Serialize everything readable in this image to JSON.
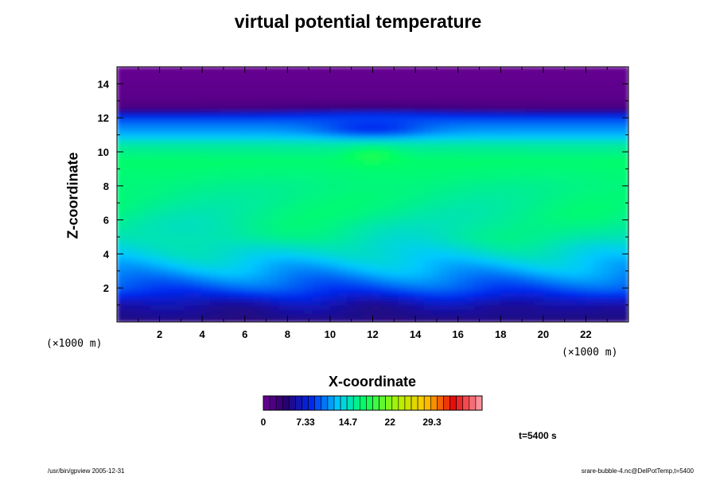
{
  "chart_data": {
    "type": "heatmap",
    "title": "virtual potential temperature",
    "xlabel": "X-coordinate",
    "ylabel": "Z-coordinate",
    "x_unit": "(×1000 m)",
    "y_unit": "(×1000 m)",
    "xlim": [
      0,
      24
    ],
    "ylim": [
      0,
      15
    ],
    "x_ticks": [
      2,
      4,
      6,
      8,
      10,
      12,
      14,
      16,
      18,
      20,
      22
    ],
    "y_ticks": [
      2,
      4,
      6,
      8,
      10,
      12,
      14
    ],
    "colorbar": {
      "min": 0,
      "max": 38,
      "tick_values": [
        0,
        7.33,
        14.7,
        22,
        29.3
      ],
      "tick_labels": [
        "0",
        "7.33",
        "14.7",
        "22",
        "29.3"
      ],
      "levels": 34
    },
    "vertical_profile": {
      "z": [
        0,
        0.3,
        1.0,
        2.0,
        3.0,
        4.0,
        5.0,
        6.5,
        8.0,
        9.5,
        10.5,
        11.0,
        11.8,
        12.3,
        12.6,
        13.2,
        15.0
      ],
      "value": [
        4,
        5,
        6.5,
        9.5,
        12,
        14,
        15.5,
        16.2,
        16.5,
        17.3,
        15.5,
        12.5,
        10,
        7,
        2,
        1,
        0.5
      ]
    },
    "annotation": "t=5400 s"
  },
  "footer": {
    "left": "/usr/bin/gpview 2005-12-31",
    "right": "srare-bubble-4.nc@DelPotTemp,t=5400"
  }
}
